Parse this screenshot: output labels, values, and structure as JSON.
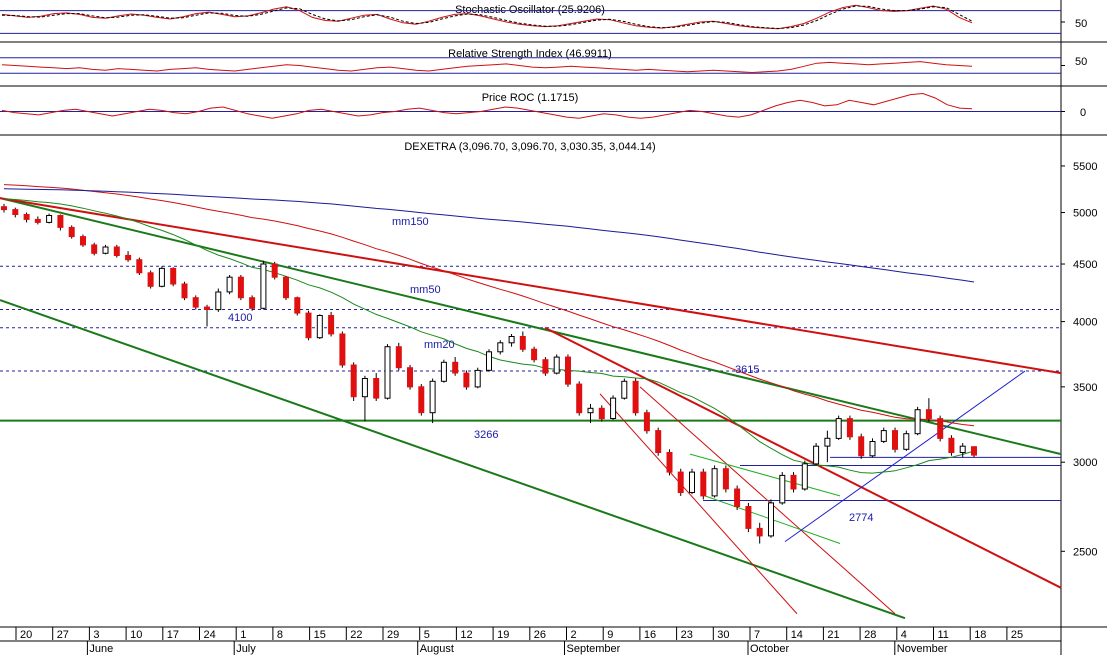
{
  "chart_data": [
    {
      "type": "line",
      "title": "Stochastic Oscillator (25.9206)",
      "ylim": [
        0,
        100
      ],
      "ticks": [
        "50"
      ],
      "reference_lines": [
        20,
        80
      ],
      "series": [
        {
          "values": [
            70,
            66,
            62,
            65,
            72,
            74,
            70,
            62,
            60,
            66,
            71,
            68,
            62,
            58,
            64,
            72,
            76,
            70,
            64,
            66,
            74,
            84,
            90,
            80,
            62,
            54,
            52,
            60,
            68,
            70,
            58,
            48,
            44,
            52,
            62,
            70,
            72,
            66,
            58,
            50,
            44,
            40,
            38,
            40,
            46,
            52,
            58,
            56,
            48,
            40,
            36,
            34,
            38,
            44,
            50,
            52,
            46,
            40,
            36,
            34,
            32,
            38,
            46,
            60,
            76,
            88,
            94,
            88,
            80,
            78,
            80,
            86,
            92,
            84,
            62,
            48
          ]
        },
        {
          "values": [
            68,
            67,
            64,
            63,
            68,
            72,
            72,
            66,
            61,
            63,
            68,
            69,
            65,
            60,
            61,
            68,
            74,
            73,
            67,
            65,
            70,
            79,
            87,
            85,
            70,
            58,
            53,
            56,
            64,
            69,
            63,
            52,
            46,
            49,
            58,
            66,
            71,
            69,
            62,
            54,
            47,
            42,
            39,
            39,
            43,
            49,
            55,
            57,
            52,
            44,
            38,
            35,
            36,
            41,
            47,
            51,
            49,
            43,
            38,
            35,
            33,
            35,
            42,
            54,
            70,
            84,
            92,
            91,
            84,
            80,
            80,
            84,
            90,
            88,
            70,
            52
          ]
        }
      ]
    },
    {
      "type": "line",
      "title": "Relative Strength Index (46.9911)",
      "ylim": [
        0,
        100
      ],
      "ticks": [
        "50"
      ],
      "reference_lines": [
        30,
        70
      ],
      "series": [
        {
          "values": [
            52,
            50,
            48,
            46,
            44,
            42,
            44,
            40,
            38,
            42,
            40,
            38,
            36,
            40,
            42,
            44,
            40,
            38,
            36,
            40,
            44,
            48,
            52,
            50,
            46,
            42,
            38,
            36,
            40,
            44,
            46,
            42,
            38,
            36,
            40,
            44,
            48,
            50,
            52,
            54,
            50,
            46,
            44,
            46,
            48,
            46,
            44,
            42,
            40,
            38,
            40,
            38,
            36,
            34,
            36,
            38,
            36,
            34,
            32,
            34,
            36,
            40,
            48,
            56,
            58,
            56,
            54,
            52,
            54,
            56,
            58,
            60,
            56,
            52,
            50,
            48
          ]
        }
      ]
    },
    {
      "type": "line",
      "title": "Price ROC (1.1715)",
      "ylim": [
        -10,
        10
      ],
      "ticks": [
        "0"
      ],
      "reference_lines": [
        0
      ],
      "series": [
        {
          "values": [
            0.5,
            -0.5,
            -1.0,
            -1.5,
            -0.5,
            0.5,
            1.0,
            0.0,
            -1.0,
            -2.0,
            -1.0,
            0.0,
            1.0,
            0.5,
            -0.5,
            -1.0,
            0.0,
            1.5,
            2.0,
            0.5,
            -1.0,
            -2.0,
            -3.0,
            -2.0,
            -1.0,
            0.5,
            1.0,
            0.0,
            -1.0,
            -2.0,
            -1.5,
            -0.5,
            0.0,
            1.0,
            1.5,
            0.5,
            -0.5,
            -1.0,
            -0.5,
            0.0,
            1.0,
            2.0,
            1.5,
            0.5,
            -0.5,
            -1.5,
            -2.5,
            -3.0,
            -2.0,
            -1.0,
            -1.5,
            -2.5,
            -3.0,
            -2.5,
            -1.5,
            -0.5,
            0.5,
            0.0,
            -1.0,
            -2.0,
            -2.5,
            -1.5,
            0.5,
            2.5,
            4.0,
            5.0,
            4.0,
            2.5,
            3.0,
            5.0,
            4.0,
            3.0,
            4.5,
            6.0,
            7.5,
            8.0,
            6.0,
            3.0,
            1.5,
            1.2
          ]
        }
      ]
    },
    {
      "type": "candlestick",
      "title": "DEXETRA (3,096.70, 3,096.70, 3,030.35, 3,044.14)",
      "y_scale": "log",
      "ylim": [
        2150,
        5800
      ],
      "y_ticks": [
        2500,
        3000,
        3500,
        4000,
        4500,
        5000,
        5500
      ],
      "x_tick_labels": [
        "20",
        "27",
        "3",
        "10",
        "17",
        "24",
        "1",
        "8",
        "15",
        "22",
        "29",
        "5",
        "12",
        "19",
        "26",
        "2",
        "9",
        "16",
        "23",
        "30",
        "7",
        "14",
        "21",
        "28",
        "4",
        "11",
        "18",
        "25"
      ],
      "month_labels": [
        "June",
        "July",
        "August",
        "September",
        "October",
        "November"
      ],
      "horizontal_levels": [
        3615,
        3266,
        2774
      ],
      "level_labels": [
        "4100",
        "3615",
        "3266",
        "2774"
      ],
      "moving_average_labels": [
        "mm150",
        "mm50",
        "mm20"
      ],
      "candles": [
        [
          5060,
          5090,
          5000,
          5030
        ],
        [
          5030,
          5050,
          4950,
          4980
        ],
        [
          4980,
          5000,
          4900,
          4930
        ],
        [
          4930,
          4960,
          4880,
          4900
        ],
        [
          4900,
          4990,
          4890,
          4970
        ],
        [
          4970,
          4980,
          4820,
          4850
        ],
        [
          4850,
          4870,
          4740,
          4760
        ],
        [
          4760,
          4780,
          4660,
          4680
        ],
        [
          4680,
          4700,
          4580,
          4600
        ],
        [
          4600,
          4680,
          4590,
          4660
        ],
        [
          4660,
          4680,
          4560,
          4580
        ],
        [
          4580,
          4620,
          4520,
          4540
        ],
        [
          4540,
          4560,
          4400,
          4420
        ],
        [
          4420,
          4440,
          4280,
          4300
        ],
        [
          4300,
          4480,
          4290,
          4460
        ],
        [
          4460,
          4470,
          4300,
          4320
        ],
        [
          4320,
          4340,
          4180,
          4200
        ],
        [
          4200,
          4220,
          4100,
          4120
        ],
        [
          4120,
          4140,
          3960,
          4100
        ],
        [
          4100,
          4280,
          4080,
          4250
        ],
        [
          4250,
          4400,
          4230,
          4380
        ],
        [
          4380,
          4400,
          4180,
          4200
        ],
        [
          4200,
          4220,
          4090,
          4110
        ],
        [
          4110,
          4530,
          4100,
          4500
        ],
        [
          4500,
          4520,
          4360,
          4380
        ],
        [
          4380,
          4390,
          4180,
          4200
        ],
        [
          4200,
          4210,
          4050,
          4070
        ],
        [
          4070,
          4090,
          3850,
          3870
        ],
        [
          3870,
          4060,
          3860,
          4050
        ],
        [
          4050,
          4080,
          3880,
          3900
        ],
        [
          3900,
          3920,
          3640,
          3660
        ],
        [
          3660,
          3680,
          3400,
          3430
        ],
        [
          3430,
          3580,
          3260,
          3560
        ],
        [
          3560,
          3600,
          3400,
          3420
        ],
        [
          3420,
          3820,
          3410,
          3800
        ],
        [
          3800,
          3830,
          3620,
          3640
        ],
        [
          3640,
          3660,
          3480,
          3500
        ],
        [
          3500,
          3520,
          3300,
          3320
        ],
        [
          3320,
          3560,
          3250,
          3540
        ],
        [
          3540,
          3700,
          3530,
          3680
        ],
        [
          3680,
          3720,
          3580,
          3600
        ],
        [
          3600,
          3620,
          3480,
          3500
        ],
        [
          3500,
          3640,
          3490,
          3620
        ],
        [
          3620,
          3780,
          3610,
          3760
        ],
        [
          3760,
          3850,
          3740,
          3830
        ],
        [
          3830,
          3900,
          3800,
          3880
        ],
        [
          3880,
          3920,
          3760,
          3780
        ],
        [
          3780,
          3800,
          3680,
          3700
        ],
        [
          3700,
          3720,
          3580,
          3600
        ],
        [
          3600,
          3740,
          3590,
          3720
        ],
        [
          3720,
          3740,
          3500,
          3520
        ],
        [
          3520,
          3540,
          3300,
          3320
        ],
        [
          3320,
          3380,
          3250,
          3350
        ],
        [
          3350,
          3370,
          3260,
          3280
        ],
        [
          3280,
          3440,
          3270,
          3420
        ],
        [
          3420,
          3560,
          3410,
          3540
        ],
        [
          3540,
          3560,
          3300,
          3320
        ],
        [
          3320,
          3340,
          3180,
          3200
        ],
        [
          3200,
          3220,
          3040,
          3060
        ],
        [
          3060,
          3080,
          2920,
          2940
        ],
        [
          2940,
          2960,
          2800,
          2820
        ],
        [
          2820,
          2960,
          2810,
          2940
        ],
        [
          2940,
          2960,
          2780,
          2800
        ],
        [
          2800,
          2980,
          2790,
          2960
        ],
        [
          2960,
          2980,
          2820,
          2840
        ],
        [
          2840,
          2860,
          2720,
          2740
        ],
        [
          2740,
          2760,
          2600,
          2620
        ],
        [
          2620,
          2650,
          2540,
          2580
        ],
        [
          2580,
          2780,
          2570,
          2760
        ],
        [
          2760,
          2940,
          2750,
          2920
        ],
        [
          2920,
          2940,
          2820,
          2840
        ],
        [
          2840,
          3010,
          2830,
          2990
        ],
        [
          2990,
          3120,
          2980,
          3100
        ],
        [
          3100,
          3200,
          3000,
          3150
        ],
        [
          3150,
          3300,
          3140,
          3280
        ],
        [
          3280,
          3300,
          3140,
          3160
        ],
        [
          3160,
          3180,
          3020,
          3040
        ],
        [
          3040,
          3150,
          3030,
          3130
        ],
        [
          3130,
          3220,
          3120,
          3200
        ],
        [
          3200,
          3220,
          3060,
          3080
        ],
        [
          3080,
          3200,
          3070,
          3180
        ],
        [
          3180,
          3360,
          3170,
          3340
        ],
        [
          3340,
          3420,
          3260,
          3280
        ],
        [
          3280,
          3300,
          3130,
          3150
        ],
        [
          3150,
          3170,
          3040,
          3060
        ],
        [
          3060,
          3120,
          3030,
          3100
        ],
        [
          3096.7,
          3096.7,
          3030.35,
          3044.14
        ]
      ]
    }
  ]
}
